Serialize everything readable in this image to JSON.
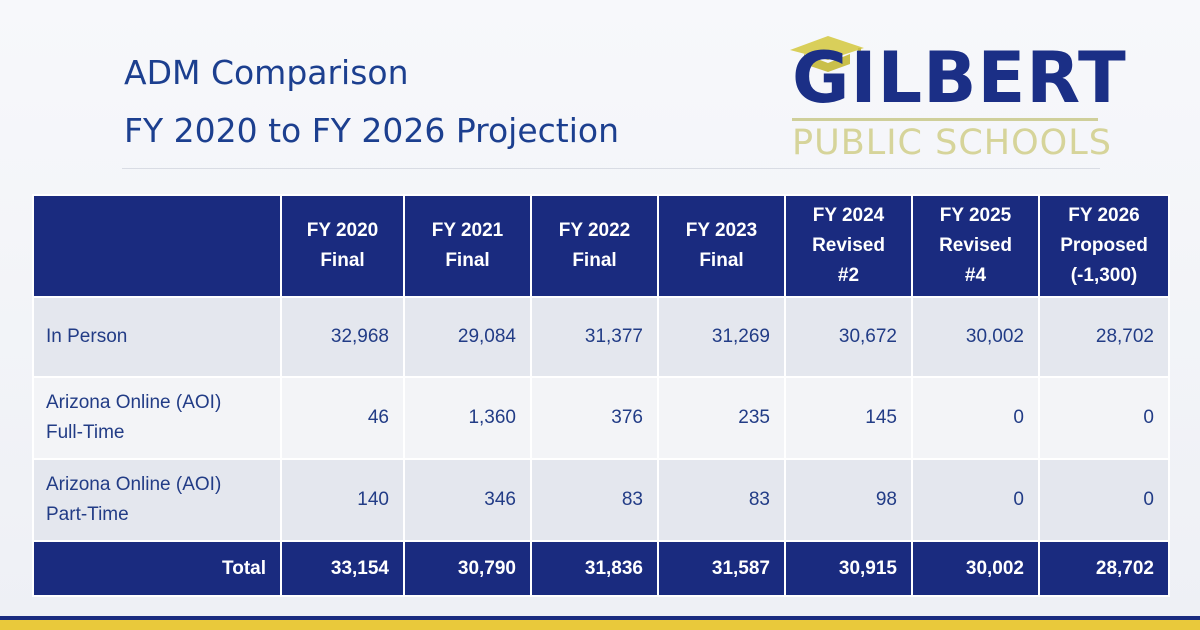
{
  "title": {
    "line1": "ADM Comparison",
    "line2": "FY 2020 to FY 2026 Projection"
  },
  "logo": {
    "name": "GILBERT",
    "subtitle": "PUBLIC SCHOOLS",
    "icon": "graduation-cap-icon",
    "colors": {
      "name": "#1b2f86",
      "subtitle": "#d6d49a",
      "cap": "#d9cf5a"
    }
  },
  "table": {
    "columns": [
      {
        "line1": "FY 2020",
        "line2": "Final",
        "line3": ""
      },
      {
        "line1": "FY 2021",
        "line2": "Final",
        "line3": ""
      },
      {
        "line1": "FY 2022",
        "line2": "Final",
        "line3": ""
      },
      {
        "line1": "FY 2023",
        "line2": "Final",
        "line3": ""
      },
      {
        "line1": "FY 2024",
        "line2": "Revised",
        "line3": "#2"
      },
      {
        "line1": "FY 2025",
        "line2": "Revised",
        "line3": "#4"
      },
      {
        "line1": "FY 2026",
        "line2": "Proposed",
        "line3": "(-1,300)"
      }
    ],
    "rows": [
      {
        "label": "In Person",
        "values": [
          "32,968",
          "29,084",
          "31,377",
          "31,269",
          "30,672",
          "30,002",
          "28,702"
        ]
      },
      {
        "label": "Arizona Online (AOI)\nFull-Time",
        "values": [
          "46",
          "1,360",
          "376",
          "235",
          "145",
          "0",
          "0"
        ]
      },
      {
        "label": "Arizona Online (AOI)\nPart-Time",
        "values": [
          "140",
          "346",
          "83",
          "83",
          "98",
          "0",
          "0"
        ]
      }
    ],
    "total": {
      "label": "Total",
      "values": [
        "33,154",
        "30,790",
        "31,836",
        "31,587",
        "30,915",
        "30,002",
        "28,702"
      ]
    }
  },
  "colors": {
    "header_bg": "#1a2b7f",
    "title_text": "#1c3f8f",
    "row_alt": "#e4e7ee",
    "row_light": "#f3f4f7",
    "accent_stripe": "#e9c93b"
  }
}
